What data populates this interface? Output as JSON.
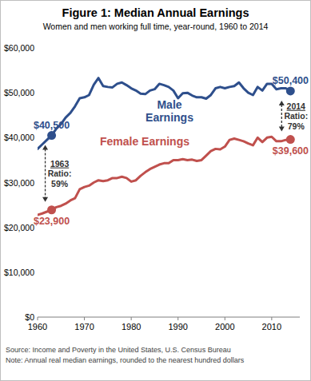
{
  "chart_data": {
    "type": "line",
    "title": "Figure 1: Median Annual Earnings",
    "subtitle": "Women and men working full time, year-round, 1960 to 2014",
    "x": [
      1960,
      1961,
      1962,
      1963,
      1964,
      1965,
      1966,
      1967,
      1968,
      1969,
      1970,
      1971,
      1972,
      1973,
      1974,
      1975,
      1976,
      1977,
      1978,
      1979,
      1980,
      1981,
      1982,
      1983,
      1984,
      1985,
      1986,
      1987,
      1988,
      1989,
      1990,
      1991,
      1992,
      1993,
      1994,
      1995,
      1996,
      1997,
      1998,
      1999,
      2000,
      2001,
      2002,
      2003,
      2004,
      2005,
      2006,
      2007,
      2008,
      2009,
      2010,
      2011,
      2012,
      2013,
      2014
    ],
    "series": [
      {
        "name": "Male Earnings",
        "color": "#2e4f8c",
        "values": [
          37500,
          38500,
          39500,
          40500,
          42000,
          43000,
          44500,
          45500,
          47000,
          48800,
          49000,
          49500,
          51800,
          53300,
          51500,
          51300,
          51200,
          52000,
          52300,
          51700,
          51000,
          50500,
          49800,
          49700,
          50500,
          50800,
          52000,
          51700,
          51300,
          50500,
          48800,
          49900,
          50000,
          49400,
          49000,
          49000,
          48700,
          49500,
          51000,
          51300,
          51000,
          51300,
          51500,
          52300,
          51000,
          50000,
          49500,
          51300,
          50500,
          52000,
          52000,
          50800,
          51000,
          51000,
          50400
        ],
        "highlights": [
          {
            "x": 1963,
            "label": "$40,500"
          },
          {
            "x": 2014,
            "label": "$50,400"
          }
        ]
      },
      {
        "name": "Female Earnings",
        "color": "#c0504d",
        "values": [
          22800,
          23100,
          23500,
          23900,
          24500,
          24800,
          25300,
          26000,
          26500,
          28500,
          29000,
          29300,
          30000,
          30500,
          30300,
          30500,
          31000,
          31000,
          31300,
          31000,
          30200,
          30500,
          31500,
          32300,
          33000,
          33500,
          34000,
          34300,
          34300,
          35000,
          35000,
          35200,
          35000,
          35100,
          34800,
          35000,
          36000,
          37000,
          37500,
          37400,
          38000,
          39500,
          39800,
          39500,
          39200,
          38700,
          38300,
          40000,
          39000,
          40000,
          40200,
          39200,
          39200,
          39500,
          39600
        ],
        "highlights": [
          {
            "x": 1963,
            "label": "$23,900"
          },
          {
            "x": 2014,
            "label": "$39,600"
          }
        ]
      }
    ],
    "xlim": [
      1960,
      2016
    ],
    "xticks": [
      1960,
      1970,
      1980,
      1990,
      2000,
      2010
    ],
    "ylim": [
      0,
      60000
    ],
    "yticks": [
      {
        "value": 0,
        "label": "$0"
      },
      {
        "value": 10000,
        "label": "$10,000"
      },
      {
        "value": 20000,
        "label": "$20,000"
      },
      {
        "value": 30000,
        "label": "$30,000"
      },
      {
        "value": 40000,
        "label": "$40,000"
      },
      {
        "value": 50000,
        "label": "$50,000"
      },
      {
        "value": 60000,
        "label": "$60,000"
      }
    ],
    "grid": false,
    "annotations": [
      {
        "x": 1963,
        "texts": [
          "1963",
          "Ratio:",
          "59%"
        ]
      },
      {
        "x": 2014,
        "texts": [
          "2014",
          "Ratio:",
          "79%"
        ]
      }
    ],
    "source": "Source: Income and Poverty in the United States, U.S. Census Bureau",
    "note": "Note: Annual real median earnings, rounded to the nearest hundred dollars"
  }
}
